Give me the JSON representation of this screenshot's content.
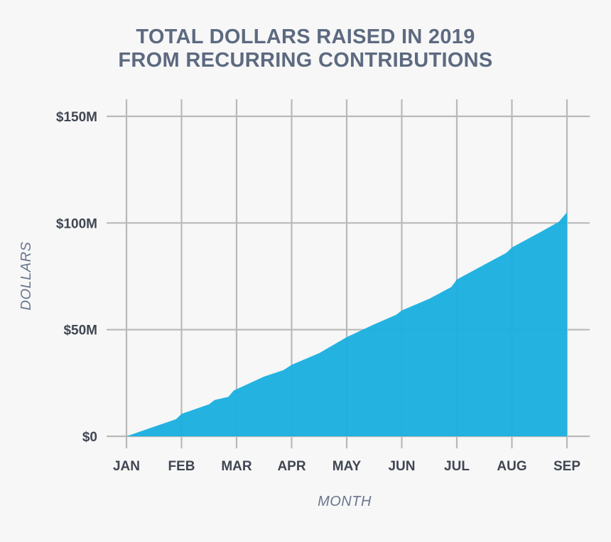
{
  "chart_data": {
    "type": "area",
    "title_lines": [
      "TOTAL DOLLARS RAISED IN 2019",
      "FROM RECURRING CONTRIBUTIONS"
    ],
    "xlabel": "MONTH",
    "ylabel": "DOLLARS",
    "categories": [
      "JAN",
      "FEB",
      "MAR",
      "APR",
      "MAY",
      "JUN",
      "JUL",
      "AUG",
      "SEP"
    ],
    "y_ticks": [
      0,
      50,
      100,
      150
    ],
    "y_tick_labels": [
      "$0",
      "$50M",
      "$100M",
      "$150M"
    ],
    "ylim": [
      0,
      150
    ],
    "y_unit": "millions of dollars",
    "grid": true,
    "series": [
      {
        "color": "#1bb0e0",
        "points": [
          {
            "x": 0,
            "y": 0
          },
          {
            "x": 0.5,
            "y": 4.5
          },
          {
            "x": 0.9,
            "y": 8
          },
          {
            "x": 1.0,
            "y": 10.5
          },
          {
            "x": 1.5,
            "y": 15
          },
          {
            "x": 1.6,
            "y": 17
          },
          {
            "x": 1.85,
            "y": 18.5
          },
          {
            "x": 1.95,
            "y": 21.5
          },
          {
            "x": 2.5,
            "y": 28
          },
          {
            "x": 2.85,
            "y": 31
          },
          {
            "x": 3.0,
            "y": 33.5
          },
          {
            "x": 3.5,
            "y": 39
          },
          {
            "x": 3.9,
            "y": 45
          },
          {
            "x": 4.0,
            "y": 46.5
          },
          {
            "x": 4.5,
            "y": 52.5
          },
          {
            "x": 4.9,
            "y": 57
          },
          {
            "x": 5.0,
            "y": 59
          },
          {
            "x": 5.5,
            "y": 64.5
          },
          {
            "x": 5.9,
            "y": 70
          },
          {
            "x": 6.0,
            "y": 73.5
          },
          {
            "x": 6.5,
            "y": 80.5
          },
          {
            "x": 6.9,
            "y": 86
          },
          {
            "x": 7.0,
            "y": 88.5
          },
          {
            "x": 7.5,
            "y": 95.5
          },
          {
            "x": 7.85,
            "y": 100.5
          },
          {
            "x": 8.0,
            "y": 105
          }
        ]
      }
    ]
  }
}
